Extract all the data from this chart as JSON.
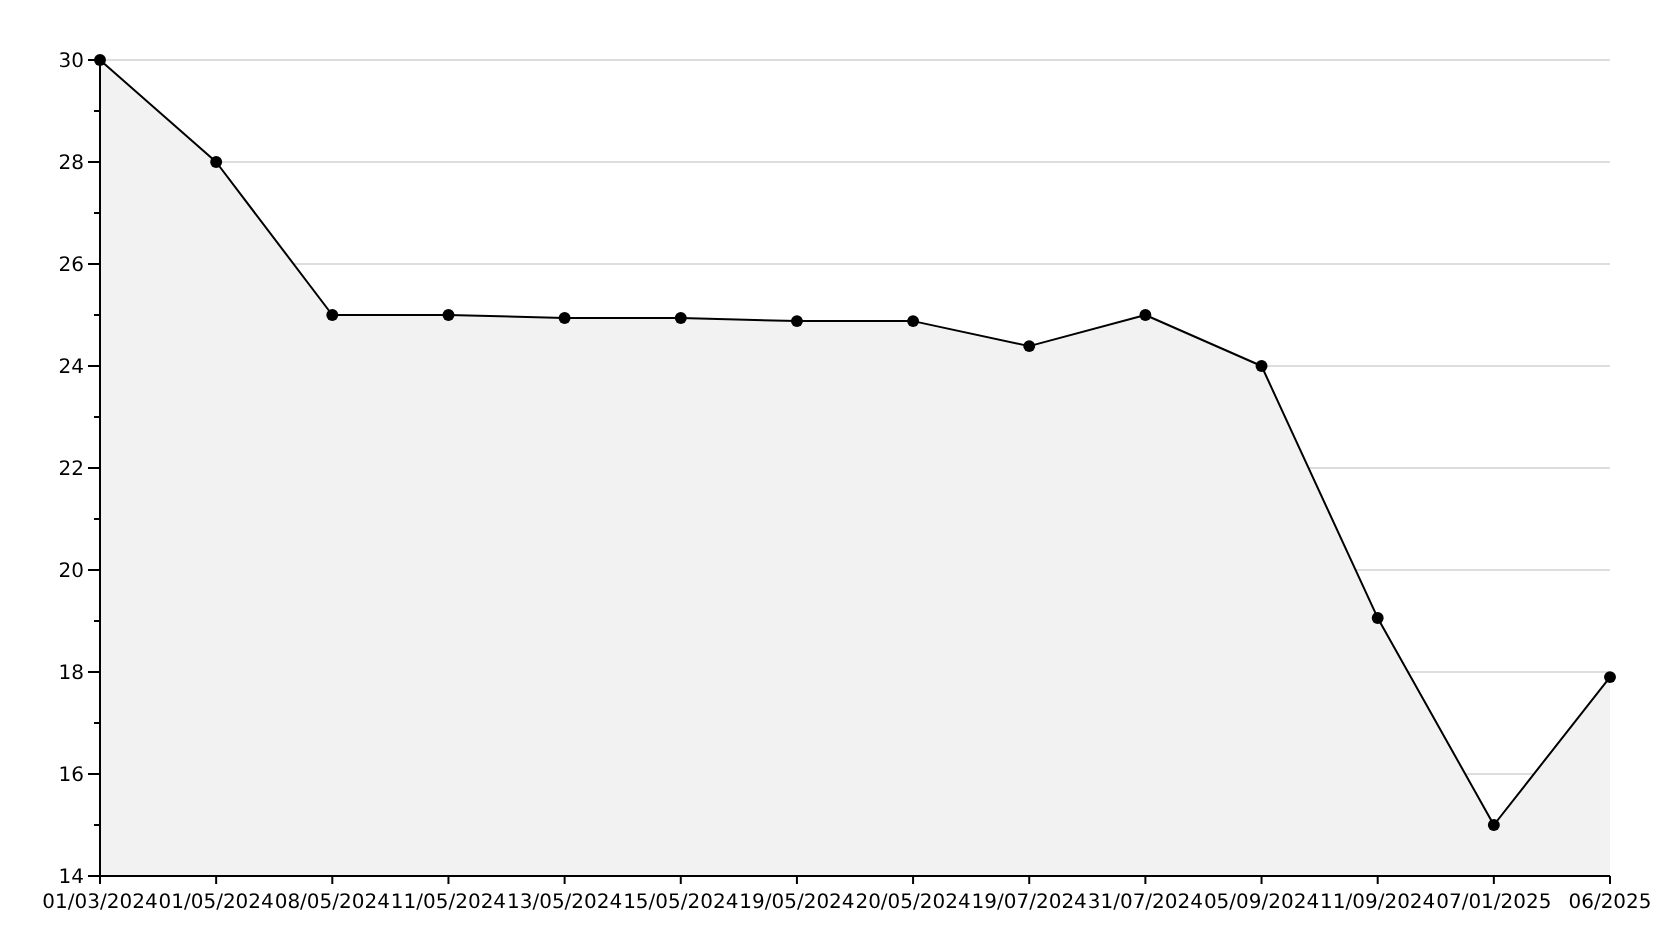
{
  "chart_data": {
    "type": "area",
    "categories": [
      "01/03/2024",
      "01/05/2024",
      "08/05/2024",
      "11/05/2024",
      "13/05/2024",
      "15/05/2024",
      "19/05/2024",
      "20/05/2024",
      "19/07/2024",
      "31/07/2024",
      "05/09/2024",
      "11/09/2024",
      "07/01/2025",
      "06/2025"
    ],
    "series": [
      {
        "color": "#000000",
        "values": [
          30,
          28,
          25,
          25,
          24.94,
          24.94,
          24.88,
          24.88,
          24.39,
          25,
          24,
          19.06,
          15,
          17.9
        ]
      }
    ],
    "ylim": [
      14,
      30
    ],
    "yticks": [
      14,
      {
        "value": 15,
        "label": null
      },
      16,
      {
        "value": 17,
        "label": null
      },
      18,
      {
        "value": 19,
        "label": null
      },
      20,
      {
        "value": 21,
        "label": null
      },
      22,
      {
        "value": 23,
        "label": null
      },
      24,
      {
        "value": 25,
        "label": null
      },
      26,
      {
        "value": 27,
        "label": null
      },
      28,
      {
        "value": 29,
        "label": null
      },
      30
    ],
    "grid": "y",
    "marker": "circle",
    "line_style": "solid"
  }
}
